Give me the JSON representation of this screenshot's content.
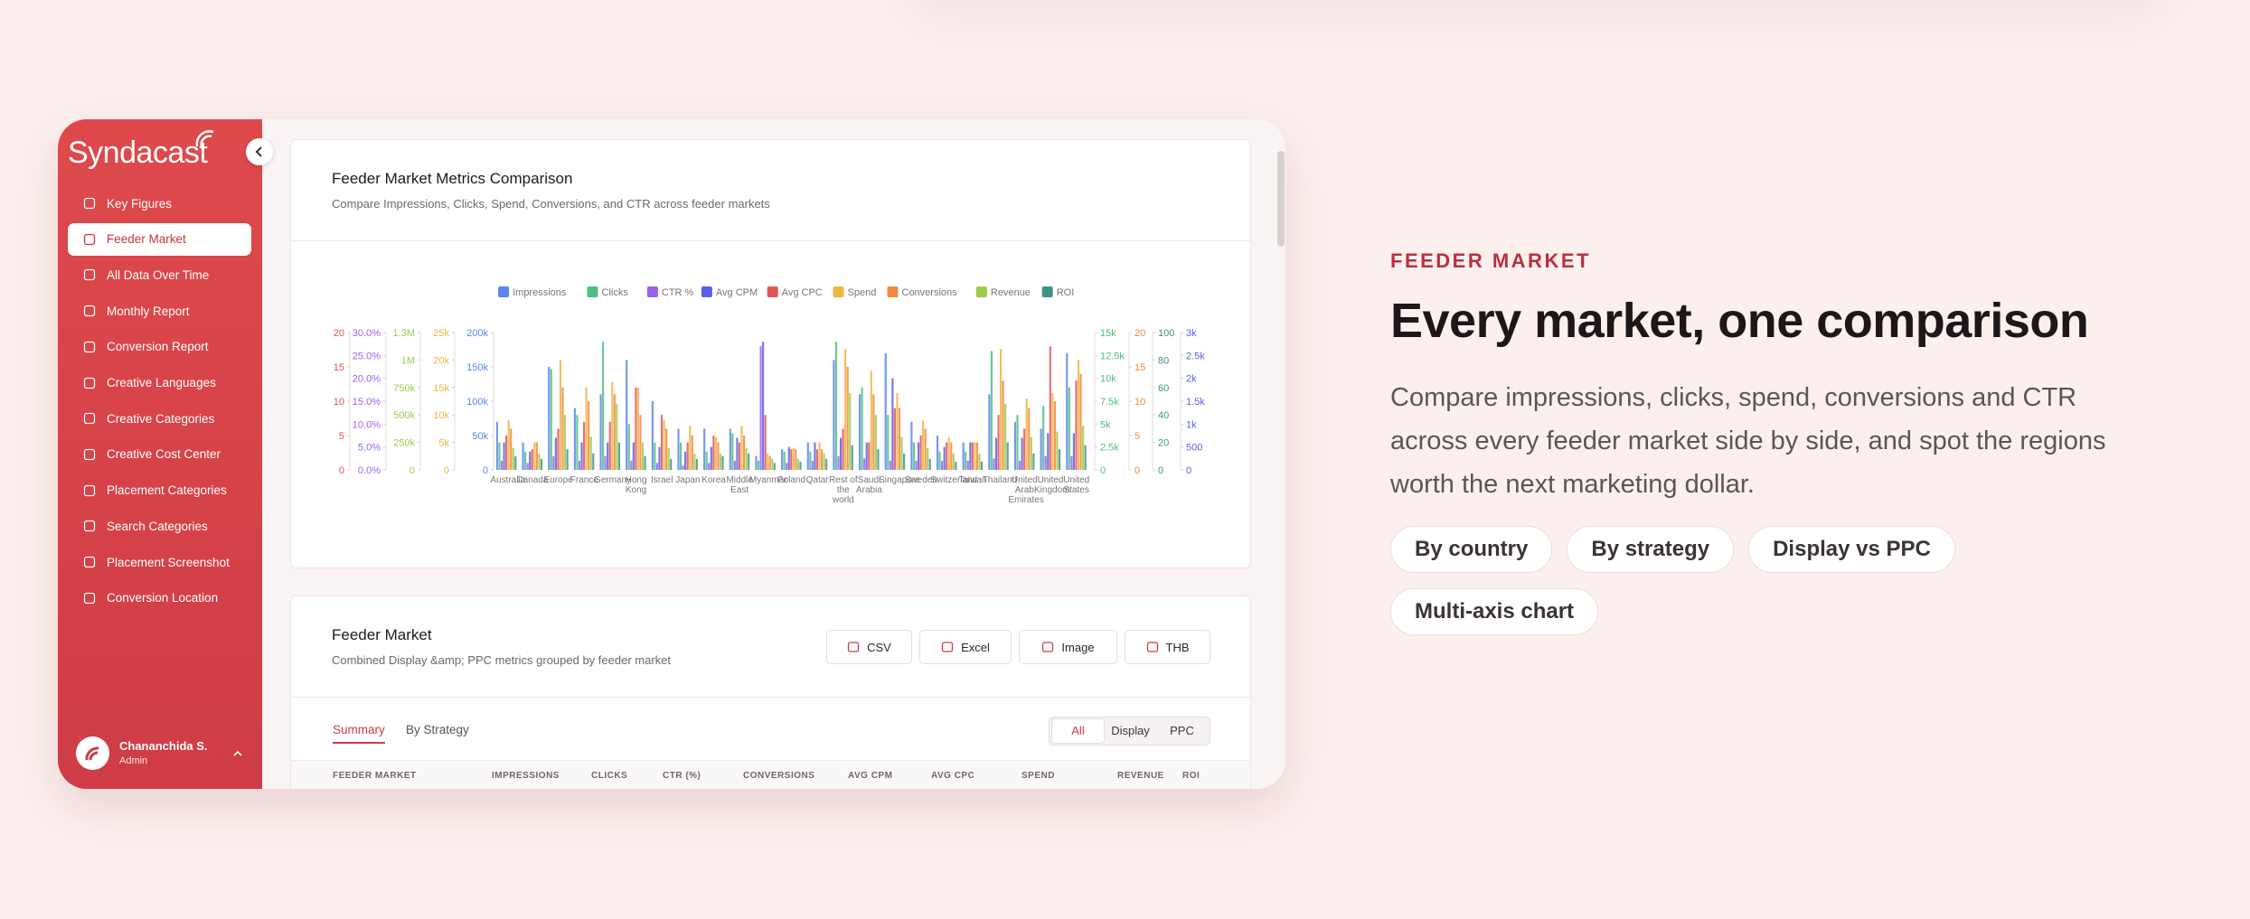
{
  "sidebar": {
    "brand": "Syndacast",
    "menu": [
      "Key Figures",
      "Feeder Market",
      "All Data Over Time",
      "Monthly Report",
      "Conversion Report",
      "Creative Languages",
      "Creative Categories",
      "Creative Cost Center",
      "Placement Categories",
      "Search Categories",
      "Placement Screenshot",
      "Conversion Location"
    ],
    "active": 1,
    "user": {
      "name": "Chananchida S.",
      "role": "Admin"
    }
  },
  "chart_card": {
    "title": "Feeder Market Metrics Comparison",
    "subtitle": "Compare Impressions, Clicks, Spend, Conversions, and CTR across feeder markets"
  },
  "chart_data": {
    "type": "bar",
    "categories": [
      "Australia",
      "Canada",
      "Europe",
      "France",
      "Germany",
      "Hong Kong",
      "Israel",
      "Japan",
      "Korea",
      "Middle East",
      "Myanmar",
      "Poland",
      "Qatar",
      "Rest of the world",
      "Saudi Arabia",
      "Singapore",
      "Sweden",
      "Switzerland",
      "Taiwan",
      "Thailand",
      "United Arab Emirates",
      "United Kingdom",
      "United States"
    ],
    "axes": [
      {
        "side": "left",
        "color": "#e25555",
        "ylim": [
          0,
          20
        ],
        "yticks": [
          0,
          5,
          10,
          15,
          20
        ]
      },
      {
        "side": "left",
        "color": "#9a63ec",
        "ylim": [
          0,
          30
        ],
        "yticks": [
          {
            "value": 0,
            "label": "0.0%"
          },
          {
            "value": 5,
            "label": "5.0%"
          },
          {
            "value": 10,
            "label": "10.0%"
          },
          {
            "value": 15,
            "label": "15.0%"
          },
          {
            "value": 20,
            "label": "20.0%"
          },
          {
            "value": 25,
            "label": "25.0%"
          },
          {
            "value": 30,
            "label": "30.0%"
          }
        ]
      },
      {
        "side": "left",
        "color": "#9ccc48",
        "ylim": [
          0,
          1250000
        ],
        "yticks": [
          0,
          {
            "value": 250000,
            "label": "250k"
          },
          {
            "value": 500000,
            "label": "500k"
          },
          {
            "value": 750000,
            "label": "750k"
          },
          {
            "value": 1000000,
            "label": "1M"
          },
          {
            "value": 1250000,
            "label": "1.3M"
          }
        ]
      },
      {
        "side": "left",
        "color": "#f0b443",
        "ylim": [
          0,
          25000
        ],
        "yticks": [
          0,
          {
            "value": 5000,
            "label": "5k"
          },
          {
            "value": 10000,
            "label": "10k"
          },
          {
            "value": 15000,
            "label": "15k"
          },
          {
            "value": 20000,
            "label": "20k"
          },
          {
            "value": 25000,
            "label": "25k"
          }
        ]
      },
      {
        "side": "left",
        "color": "#5b85ef",
        "ylim": [
          0,
          200000
        ],
        "yticks": [
          0,
          {
            "value": 50000,
            "label": "50k"
          },
          {
            "value": 100000,
            "label": "100k"
          },
          {
            "value": 150000,
            "label": "150k"
          },
          {
            "value": 200000,
            "label": "200k"
          }
        ]
      },
      {
        "side": "right",
        "color": "#4fbf7f",
        "ylim": [
          0,
          15000
        ],
        "yticks": [
          0,
          {
            "value": 2500,
            "label": "2.5k"
          },
          {
            "value": 5000,
            "label": "5k"
          },
          {
            "value": 7500,
            "label": "7.5k"
          },
          {
            "value": 10000,
            "label": "10k"
          },
          {
            "value": 12500,
            "label": "12.5k"
          },
          {
            "value": 15000,
            "label": "15k"
          }
        ]
      },
      {
        "side": "right",
        "color": "#f08a3e",
        "ylim": [
          0,
          20
        ],
        "yticks": [
          0,
          5,
          10,
          15,
          20
        ]
      },
      {
        "side": "right",
        "color": "#3f9486",
        "ylim": [
          0,
          100
        ],
        "yticks": [
          0,
          20,
          40,
          60,
          80,
          100
        ]
      },
      {
        "side": "right",
        "color": "#5a5fe8",
        "ylim": [
          0,
          3000
        ],
        "yticks": [
          0,
          500,
          {
            "value": 1000,
            "label": "1k"
          },
          {
            "value": 1500,
            "label": "1.5k"
          },
          {
            "value": 2000,
            "label": "2k"
          },
          {
            "value": 2500,
            "label": "2.5k"
          },
          {
            "value": 3000,
            "label": "3k"
          }
        ]
      }
    ],
    "series": [
      {
        "name": "Impressions",
        "color": "#5b85ef",
        "axis": 4,
        "values": [
          70000,
          40000,
          150000,
          90000,
          110000,
          160000,
          100000,
          60000,
          60000,
          60000,
          20000,
          30000,
          40000,
          160000,
          110000,
          170000,
          70000,
          50000,
          40000,
          110000,
          70000,
          60000,
          170000
        ]
      },
      {
        "name": "Clicks",
        "color": "#4fbf7f",
        "axis": 5,
        "values": [
          3000,
          2000,
          11000,
          6000,
          14000,
          5000,
          3000,
          3000,
          2000,
          4000,
          1000,
          2000,
          2000,
          14000,
          9000,
          6000,
          3000,
          2000,
          2000,
          13000,
          6000,
          7000,
          9000
        ]
      },
      {
        "name": "CTR %",
        "color": "#9a63ec",
        "axis": 1,
        "values": [
          2,
          1.5,
          3,
          2,
          3,
          2,
          1.5,
          1,
          1.5,
          2,
          27,
          1.5,
          2,
          3,
          2.5,
          2,
          2,
          2,
          2,
          2.5,
          2,
          3,
          3
        ]
      },
      {
        "name": "Avg CPM",
        "color": "#5a5fe8",
        "axis": 8,
        "values": [
          600,
          400,
          700,
          600,
          600,
          600,
          500,
          400,
          500,
          700,
          2800,
          500,
          600,
          700,
          600,
          2000,
          600,
          500,
          600,
          700,
          700,
          800,
          800
        ]
      },
      {
        "name": "Avg CPC",
        "color": "#e25555",
        "axis": 0,
        "values": [
          5,
          3,
          6,
          7,
          7,
          12,
          8,
          4,
          5,
          4,
          8,
          3,
          3,
          6,
          4,
          9,
          5,
          4,
          4,
          8,
          6,
          18,
          13
        ]
      },
      {
        "name": "Spend",
        "color": "#f0b443",
        "axis": 3,
        "values": [
          9000,
          5000,
          20000,
          15000,
          16000,
          15000,
          9000,
          8000,
          6000,
          8000,
          3000,
          4000,
          5000,
          22000,
          18000,
          14000,
          9000,
          6000,
          5000,
          22000,
          13000,
          14000,
          20000
        ]
      },
      {
        "name": "Conversions",
        "color": "#f08a3e",
        "axis": 6,
        "values": [
          6,
          4,
          12,
          10,
          11,
          8,
          6,
          5,
          4,
          5,
          2,
          3,
          3,
          15,
          11,
          9,
          6,
          4,
          4,
          13,
          9,
          10,
          14
        ]
      },
      {
        "name": "Revenue",
        "color": "#9ccc48",
        "axis": 2,
        "values": [
          200000,
          150000,
          500000,
          300000,
          600000,
          250000,
          200000,
          150000,
          150000,
          200000,
          100000,
          100000,
          150000,
          700000,
          500000,
          300000,
          200000,
          150000,
          150000,
          600000,
          300000,
          350000,
          400000
        ]
      },
      {
        "name": "ROI",
        "color": "#3f9486",
        "axis": 7,
        "values": [
          10,
          8,
          15,
          12,
          20,
          10,
          8,
          8,
          10,
          12,
          5,
          6,
          8,
          18,
          15,
          12,
          8,
          6,
          6,
          20,
          12,
          15,
          18
        ]
      }
    ]
  },
  "table_card": {
    "title": "Feeder Market",
    "subtitle": "Combined Display &amp; PPC metrics grouped by feeder market",
    "buttons": [
      "CSV",
      "Excel",
      "Image",
      "THB"
    ],
    "tabs": [
      "Summary",
      "By Strategy"
    ],
    "filters": [
      "All",
      "Display",
      "PPC"
    ],
    "columns": [
      "FEEDER MARKET",
      "IMPRESSIONS",
      "CLICKS",
      "CTR (%)",
      "CONVERSIONS",
      "AVG CPM",
      "AVG CPC",
      "SPEND",
      "REVENUE",
      "ROI"
    ]
  },
  "hero": {
    "eyebrow": "FEEDER MARKET",
    "title": "Every market, one comparison",
    "description": "Compare impressions, clicks, spend, conversions and CTR across every feeder market side by side, and spot the regions worth the next marketing dollar.",
    "chips": [
      "By country",
      "By strategy",
      "Display vs PPC",
      "Multi-axis chart"
    ]
  }
}
